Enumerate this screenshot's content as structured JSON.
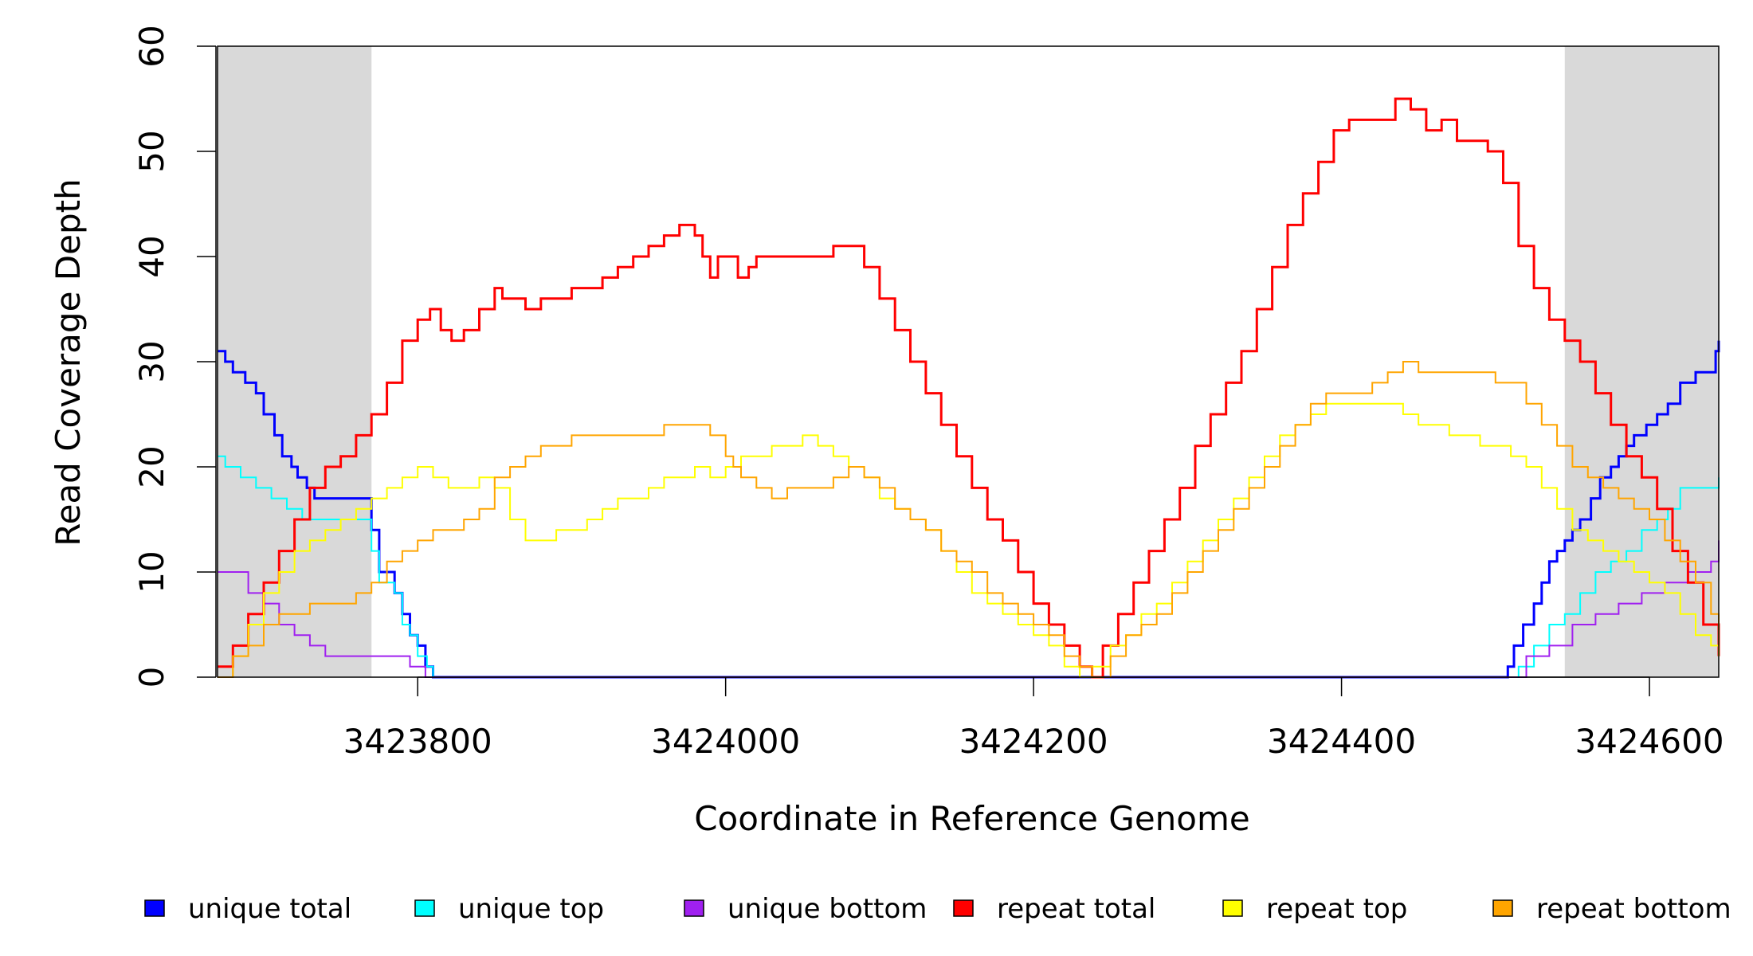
{
  "chart_data": {
    "type": "line",
    "xlabel": "Coordinate in Reference Genome",
    "ylabel": "Read Coverage Depth",
    "xlim": [
      3423670,
      3424645
    ],
    "ylim": [
      0,
      60
    ],
    "x_ticks": [
      3423800,
      3424000,
      3424200,
      3424400,
      3424600
    ],
    "x_tick_labels": [
      "3423800",
      "3424000",
      "3424200",
      "3424400",
      "3424600"
    ],
    "y_ticks": [
      0,
      10,
      20,
      30,
      40,
      50,
      60
    ],
    "y_tick_labels": [
      "0",
      "10",
      "20",
      "30",
      "40",
      "50",
      "60"
    ],
    "shaded_regions": [
      {
        "x0": 3423670,
        "x1": 3423770,
        "color": "#d9d9d9"
      },
      {
        "x0": 3424545,
        "x1": 3424645,
        "color": "#d9d9d9"
      }
    ],
    "legend_position": "bottom",
    "series": [
      {
        "name": "unique total",
        "color": "#0000ff",
        "width": 3,
        "x": [
          3423670,
          3423675,
          3423680,
          3423688,
          3423695,
          3423700,
          3423707,
          3423712,
          3423718,
          3423722,
          3423728,
          3423733,
          3423740,
          3423745,
          3423750,
          3423755,
          3423765,
          3423770,
          3423775,
          3423780,
          3423785,
          3423790,
          3423795,
          3423800,
          3423805,
          3423810,
          3424505,
          3424508,
          3424512,
          3424518,
          3424525,
          3424530,
          3424535,
          3424540,
          3424545,
          3424550,
          3424555,
          3424562,
          3424568,
          3424575,
          3424580,
          3424585,
          3424590,
          3424598,
          3424605,
          3424612,
          3424620,
          3424630,
          3424640,
          3424643,
          3424645
        ],
        "values": [
          31,
          30,
          29,
          28,
          27,
          25,
          23,
          21,
          20,
          19,
          18,
          17,
          17,
          17,
          17,
          17,
          17,
          14,
          10,
          10,
          8,
          6,
          4,
          3,
          1,
          0,
          0,
          1,
          3,
          5,
          7,
          9,
          11,
          12,
          13,
          14,
          15,
          17,
          19,
          20,
          21,
          22,
          23,
          24,
          25,
          26,
          28,
          29,
          29,
          31,
          32
        ]
      },
      {
        "name": "unique top",
        "color": "#00ffff",
        "width": 2,
        "x": [
          3423670,
          3423675,
          3423685,
          3423695,
          3423705,
          3423715,
          3423725,
          3423740,
          3423765,
          3423770,
          3423775,
          3423785,
          3423790,
          3423795,
          3423800,
          3423806,
          3423810,
          3424505,
          3424515,
          3424525,
          3424535,
          3424545,
          3424555,
          3424565,
          3424575,
          3424585,
          3424595,
          3424605,
          3424612,
          3424620,
          3424640,
          3424645
        ],
        "values": [
          21,
          20,
          19,
          18,
          17,
          16,
          15,
          15,
          15,
          12,
          9,
          8,
          5,
          4,
          2,
          1,
          0,
          0,
          1,
          3,
          5,
          6,
          8,
          10,
          11,
          12,
          14,
          15,
          16,
          18,
          18,
          19
        ]
      },
      {
        "name": "unique bottom",
        "color": "#a020f0",
        "width": 2,
        "x": [
          3423670,
          3423680,
          3423690,
          3423700,
          3423710,
          3423720,
          3423730,
          3423740,
          3423770,
          3423785,
          3423795,
          3423800,
          3423805,
          3424505,
          3424520,
          3424535,
          3424550,
          3424565,
          3424580,
          3424595,
          3424610,
          3424625,
          3424640,
          3424645
        ],
        "values": [
          10,
          10,
          8,
          7,
          5,
          4,
          3,
          2,
          2,
          2,
          1,
          1,
          0,
          0,
          2,
          3,
          5,
          6,
          7,
          8,
          9,
          10,
          11,
          13
        ]
      },
      {
        "name": "repeat total",
        "color": "#ff0000",
        "width": 3,
        "x": [
          3423670,
          3423680,
          3423690,
          3423700,
          3423710,
          3423720,
          3423730,
          3423740,
          3423750,
          3423760,
          3423770,
          3423780,
          3423790,
          3423800,
          3423808,
          3423815,
          3423822,
          3423830,
          3423840,
          3423850,
          3423855,
          3423860,
          3423870,
          3423880,
          3423890,
          3423900,
          3423910,
          3423920,
          3423930,
          3423940,
          3423950,
          3423960,
          3423970,
          3423980,
          3423985,
          3423990,
          3423995,
          3424000,
          3424005,
          3424008,
          3424015,
          3424020,
          3424030,
          3424040,
          3424050,
          3424060,
          3424070,
          3424080,
          3424090,
          3424100,
          3424110,
          3424120,
          3424130,
          3424140,
          3424150,
          3424160,
          3424170,
          3424180,
          3424190,
          3424200,
          3424210,
          3424220,
          3424230,
          3424238,
          3424245,
          3424255,
          3424265,
          3424275,
          3424285,
          3424295,
          3424305,
          3424315,
          3424325,
          3424335,
          3424345,
          3424355,
          3424365,
          3424375,
          3424385,
          3424395,
          3424405,
          3424415,
          3424425,
          3424435,
          3424445,
          3424455,
          3424465,
          3424475,
          3424485,
          3424495,
          3424505,
          3424515,
          3424525,
          3424535,
          3424545,
          3424555,
          3424565,
          3424575,
          3424585,
          3424595,
          3424605,
          3424615,
          3424625,
          3424635,
          3424645
        ],
        "values": [
          1,
          3,
          6,
          9,
          12,
          15,
          18,
          20,
          21,
          23,
          25,
          28,
          32,
          34,
          35,
          33,
          32,
          33,
          35,
          37,
          36,
          36,
          35,
          36,
          36,
          37,
          37,
          38,
          39,
          40,
          41,
          42,
          43,
          42,
          40,
          38,
          40,
          40,
          40,
          38,
          39,
          40,
          40,
          40,
          40,
          40,
          41,
          41,
          39,
          36,
          33,
          30,
          27,
          24,
          21,
          18,
          15,
          13,
          10,
          7,
          5,
          3,
          1,
          0,
          3,
          6,
          9,
          12,
          15,
          18,
          22,
          25,
          28,
          31,
          35,
          39,
          43,
          46,
          49,
          52,
          53,
          53,
          53,
          55,
          54,
          52,
          53,
          51,
          51,
          50,
          47,
          41,
          37,
          34,
          32,
          30,
          27,
          24,
          21,
          19,
          16,
          12,
          9,
          5,
          2
        ]
      },
      {
        "name": "repeat top",
        "color": "#ffff00",
        "width": 2,
        "x": [
          3423670,
          3423680,
          3423690,
          3423700,
          3423710,
          3423720,
          3423730,
          3423740,
          3423750,
          3423760,
          3423770,
          3423780,
          3423790,
          3423800,
          3423810,
          3423820,
          3423830,
          3423840,
          3423850,
          3423860,
          3423870,
          3423880,
          3423890,
          3423900,
          3423910,
          3423920,
          3423930,
          3423940,
          3423950,
          3423960,
          3423970,
          3423980,
          3423990,
          3424000,
          3424010,
          3424020,
          3424030,
          3424040,
          3424050,
          3424060,
          3424070,
          3424080,
          3424090,
          3424100,
          3424110,
          3424120,
          3424130,
          3424140,
          3424150,
          3424160,
          3424170,
          3424180,
          3424190,
          3424200,
          3424210,
          3424220,
          3424230,
          3424238,
          3424250,
          3424260,
          3424270,
          3424280,
          3424290,
          3424300,
          3424310,
          3424320,
          3424330,
          3424340,
          3424350,
          3424360,
          3424370,
          3424380,
          3424390,
          3424400,
          3424410,
          3424420,
          3424430,
          3424440,
          3424450,
          3424460,
          3424470,
          3424480,
          3424490,
          3424500,
          3424510,
          3424520,
          3424530,
          3424540,
          3424550,
          3424560,
          3424570,
          3424580,
          3424590,
          3424600,
          3424610,
          3424620,
          3424630,
          3424640,
          3424645
        ],
        "values": [
          0,
          2,
          5,
          8,
          10,
          12,
          13,
          14,
          15,
          16,
          17,
          18,
          19,
          20,
          19,
          18,
          18,
          19,
          18,
          15,
          13,
          13,
          14,
          14,
          15,
          16,
          17,
          17,
          18,
          19,
          19,
          20,
          19,
          20,
          21,
          21,
          22,
          22,
          23,
          22,
          21,
          20,
          19,
          17,
          16,
          15,
          14,
          12,
          10,
          8,
          7,
          6,
          5,
          4,
          3,
          1,
          0,
          1,
          3,
          4,
          6,
          7,
          9,
          11,
          13,
          15,
          17,
          19,
          21,
          23,
          24,
          25,
          26,
          26,
          26,
          26,
          26,
          25,
          24,
          24,
          23,
          23,
          22,
          22,
          21,
          20,
          18,
          16,
          14,
          13,
          12,
          11,
          10,
          9,
          8,
          6,
          4,
          3,
          2
        ]
      },
      {
        "name": "repeat bottom",
        "color": "#ffa500",
        "width": 2,
        "x": [
          3423670,
          3423680,
          3423690,
          3423700,
          3423710,
          3423720,
          3423730,
          3423740,
          3423750,
          3423760,
          3423770,
          3423780,
          3423790,
          3423800,
          3423810,
          3423820,
          3423830,
          3423840,
          3423850,
          3423860,
          3423870,
          3423880,
          3423890,
          3423900,
          3423910,
          3423920,
          3423930,
          3423940,
          3423950,
          3423960,
          3423970,
          3423980,
          3423990,
          3424000,
          3424005,
          3424010,
          3424020,
          3424030,
          3424040,
          3424050,
          3424060,
          3424070,
          3424080,
          3424090,
          3424100,
          3424110,
          3424120,
          3424130,
          3424140,
          3424150,
          3424160,
          3424170,
          3424180,
          3424190,
          3424200,
          3424210,
          3424220,
          3424230,
          3424238,
          3424250,
          3424260,
          3424270,
          3424280,
          3424290,
          3424300,
          3424310,
          3424320,
          3424330,
          3424340,
          3424350,
          3424360,
          3424370,
          3424380,
          3424390,
          3424400,
          3424410,
          3424420,
          3424430,
          3424440,
          3424450,
          3424460,
          3424470,
          3424480,
          3424490,
          3424500,
          3424510,
          3424520,
          3424530,
          3424540,
          3424550,
          3424560,
          3424570,
          3424580,
          3424590,
          3424600,
          3424610,
          3424620,
          3424630,
          3424640,
          3424645
        ],
        "values": [
          0,
          2,
          3,
          5,
          6,
          6,
          7,
          7,
          7,
          8,
          9,
          11,
          12,
          13,
          14,
          14,
          15,
          16,
          19,
          20,
          21,
          22,
          22,
          23,
          23,
          23,
          23,
          23,
          23,
          24,
          24,
          24,
          23,
          21,
          20,
          19,
          18,
          17,
          18,
          18,
          18,
          19,
          20,
          19,
          18,
          16,
          15,
          14,
          12,
          11,
          10,
          8,
          7,
          6,
          5,
          4,
          2,
          1,
          0,
          2,
          4,
          5,
          6,
          8,
          10,
          12,
          14,
          16,
          18,
          20,
          22,
          24,
          26,
          27,
          27,
          27,
          28,
          29,
          30,
          29,
          29,
          29,
          29,
          29,
          28,
          28,
          26,
          24,
          22,
          20,
          19,
          18,
          17,
          16,
          15,
          13,
          11,
          9,
          6,
          3
        ]
      }
    ]
  }
}
